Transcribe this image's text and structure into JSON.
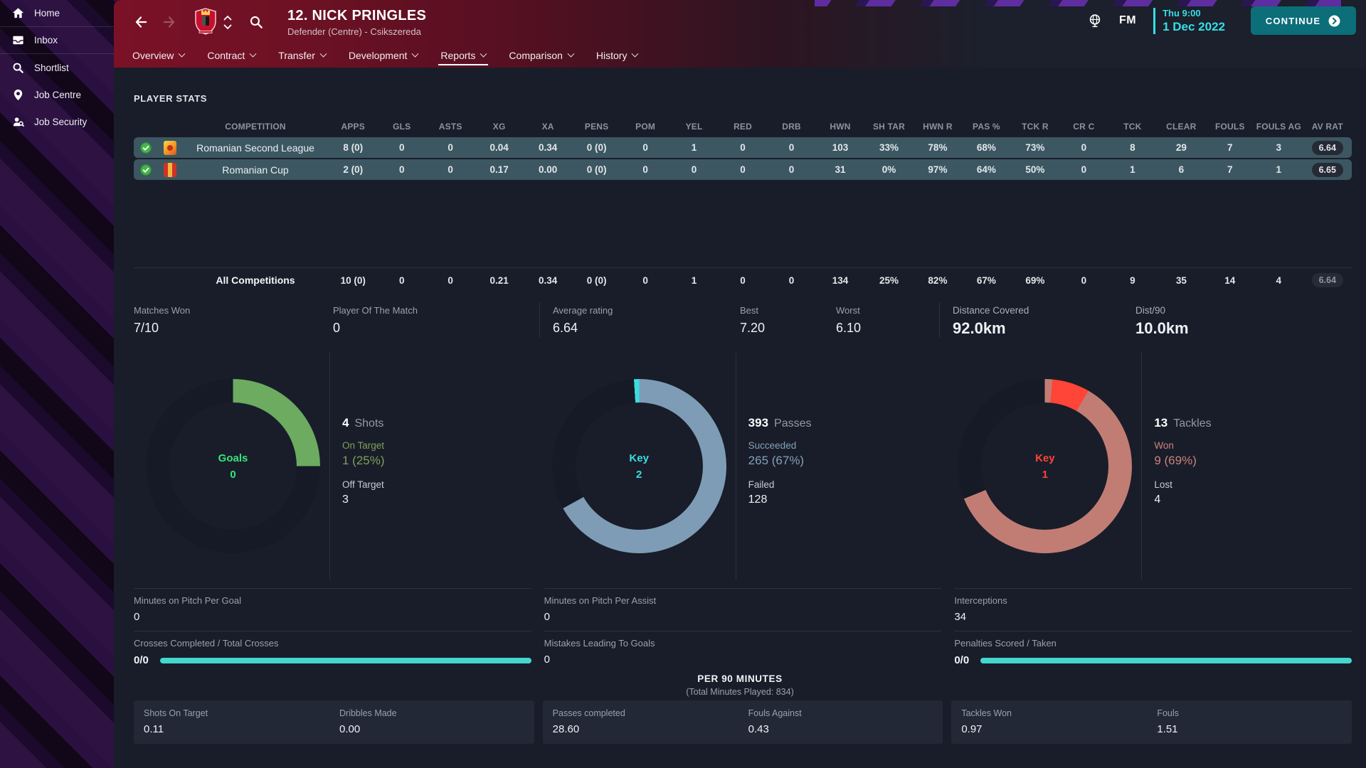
{
  "app": {
    "fm_label": "FM",
    "time": "Thu 9:00",
    "date": "1 Dec 2022",
    "continue_label": "CONTINUE"
  },
  "player": {
    "name": "12. NICK PRINGLES",
    "meta": "Defender (Centre) - Csikszereda"
  },
  "tabs": [
    {
      "label": "Overview"
    },
    {
      "label": "Contract"
    },
    {
      "label": "Transfer"
    },
    {
      "label": "Development"
    },
    {
      "label": "Reports",
      "active": true
    },
    {
      "label": "Comparison"
    },
    {
      "label": "History"
    }
  ],
  "sidebar": {
    "items": [
      {
        "label": "Home",
        "icon": "home-icon",
        "separator": true
      },
      {
        "label": "Inbox",
        "icon": "inbox-icon",
        "separator": true
      },
      {
        "label": "Shortlist",
        "icon": "shortlist-icon"
      },
      {
        "label": "Job Centre",
        "icon": "job-centre-icon"
      },
      {
        "label": "Job Security",
        "icon": "job-security-icon"
      }
    ]
  },
  "icons": {
    "home-icon": "house",
    "inbox-icon": "inbox-tray",
    "shortlist-icon": "magnifier",
    "job-centre-icon": "location-pin",
    "job-security-icon": "person-search",
    "back-icon": "arrow-left",
    "forward-icon": "arrow-right",
    "search-icon": "magnifier",
    "club-badge-icon": "club-crest",
    "world-icon": "globe",
    "continue-chevron-icon": "circled-chevron-right",
    "check-circle-icon": "green-check"
  },
  "colors": {
    "accent_cyan": "#35dfe6",
    "bar_cyan": "#43d7cf",
    "continue_teal": "#0c6e79",
    "row_teal": "#3c5761",
    "goal_green": "#6cab60",
    "center_green": "#35e57b",
    "pass_blue": "#7e9cb5",
    "key_cyan": "#3adde2",
    "tackle_salmon": "#c17d74",
    "key_red": "#ff4438"
  },
  "stats_table": {
    "title": "PLAYER STATS",
    "columns": [
      "COMPETITION",
      "APPS",
      "GLS",
      "ASTS",
      "XG",
      "XA",
      "PENS",
      "POM",
      "YEL",
      "RED",
      "DRB",
      "HWN",
      "SH TAR",
      "HWN R",
      "PAS %",
      "TCK R",
      "CR C",
      "TCK",
      "CLEAR",
      "FOULS",
      "FOULS AG",
      "AV RAT"
    ],
    "rows": [
      {
        "competition": "Romanian Second League",
        "logo": "romanian-second-league-logo",
        "values": [
          "8 (0)",
          "0",
          "0",
          "0.04",
          "0.34",
          "0 (0)",
          "0",
          "1",
          "0",
          "0",
          "103",
          "33%",
          "78%",
          "68%",
          "73%",
          "0",
          "8",
          "29",
          "7",
          "3"
        ],
        "rating": "6.64"
      },
      {
        "competition": "Romanian Cup",
        "logo": "romanian-cup-logo",
        "values": [
          "2 (0)",
          "0",
          "0",
          "0.17",
          "0.00",
          "0 (0)",
          "0",
          "0",
          "0",
          "0",
          "31",
          "0%",
          "97%",
          "64%",
          "50%",
          "0",
          "1",
          "6",
          "7",
          "1"
        ],
        "rating": "6.65"
      }
    ],
    "total_row": {
      "label": "All Competitions",
      "values": [
        "10 (0)",
        "0",
        "0",
        "0.21",
        "0.34",
        "0 (0)",
        "0",
        "1",
        "0",
        "0",
        "134",
        "25%",
        "82%",
        "67%",
        "69%",
        "0",
        "9",
        "35",
        "14",
        "4"
      ],
      "rating": "6.64"
    }
  },
  "summary": {
    "items": [
      {
        "label": "Matches Won",
        "value": "7/10"
      },
      {
        "label": "Player Of The Match",
        "value": "0"
      },
      {
        "label": "Average rating",
        "value": "6.64",
        "divider": true
      },
      {
        "label": "Best",
        "value": "7.20"
      },
      {
        "label": "Worst",
        "value": "6.10"
      },
      {
        "label": "Distance Covered",
        "value": "92.0km",
        "divider": true,
        "large": true
      },
      {
        "label": "Dist/90",
        "value": "10.0km",
        "large": true
      }
    ]
  },
  "donut_charts": [
    {
      "name": "goals",
      "center_label": "Goals",
      "center_value": "0",
      "center_color": "#35e57b",
      "percent": 25,
      "segments": [
        {
          "color": "#6cab60",
          "from": 0,
          "to": 90
        }
      ],
      "accent": "#7da05c",
      "stats": {
        "total": "4",
        "total_label": "Shots",
        "highlight_label": "On Target",
        "highlight_value": "1 (25%)",
        "other_label": "Off Target",
        "other_value": "3"
      }
    },
    {
      "name": "key-passes",
      "center_label": "Key",
      "center_value": "2",
      "center_color": "#3adde2",
      "percent": 67,
      "segments": [
        {
          "color": "#7e9cb5",
          "from": 0,
          "to": 241
        },
        {
          "color": "#3adde2",
          "from": 356.5,
          "to": 360
        }
      ],
      "accent": "#84a0bc",
      "stats": {
        "total": "393",
        "total_label": "Passes",
        "highlight_label": "Succeeded",
        "highlight_value": "265 (67%)",
        "other_label": "Failed",
        "other_value": "128"
      }
    },
    {
      "name": "key-tackles",
      "center_label": "Key",
      "center_value": "1",
      "center_color": "#ff4438",
      "percent": 69,
      "segments": [
        {
          "color": "#c17d74",
          "from": 0,
          "to": 5
        },
        {
          "color": "#ff4438",
          "from": 5,
          "to": 30
        },
        {
          "color": "#c17d74",
          "from": 30,
          "to": 248
        }
      ],
      "accent": "#c9847d",
      "stats": {
        "total": "13",
        "total_label": "Tackles",
        "highlight_label": "Won",
        "highlight_value": "9 (69%)",
        "other_label": "Lost",
        "other_value": "4"
      }
    }
  ],
  "performance": {
    "columns": [
      {
        "stats": [
          {
            "label": "Minutes on Pitch Per Goal",
            "value": "0"
          },
          {
            "label": "Crosses Completed / Total Crosses",
            "value": "0/0",
            "bar": true
          }
        ]
      },
      {
        "stats": [
          {
            "label": "Minutes on Pitch Per Assist",
            "value": "0"
          },
          {
            "label": "Mistakes Leading To Goals",
            "value": "0"
          }
        ]
      },
      {
        "stats": [
          {
            "label": "Interceptions",
            "value": "34"
          },
          {
            "label": "Penalties Scored / Taken",
            "value": "0/0",
            "bar": true
          }
        ]
      }
    ]
  },
  "per90": {
    "title": "PER 90 MINUTES",
    "subtitle": "(Total Minutes Played: 834)",
    "cards": [
      [
        {
          "label": "Shots On Target",
          "value": "0.11"
        },
        {
          "label": "Dribbles Made",
          "value": "0.00"
        }
      ],
      [
        {
          "label": "Passes completed",
          "value": "28.60"
        },
        {
          "label": "Fouls Against",
          "value": "0.43"
        }
      ],
      [
        {
          "label": "Tackles Won",
          "value": "0.97"
        },
        {
          "label": "Fouls",
          "value": "1.51"
        }
      ]
    ]
  }
}
